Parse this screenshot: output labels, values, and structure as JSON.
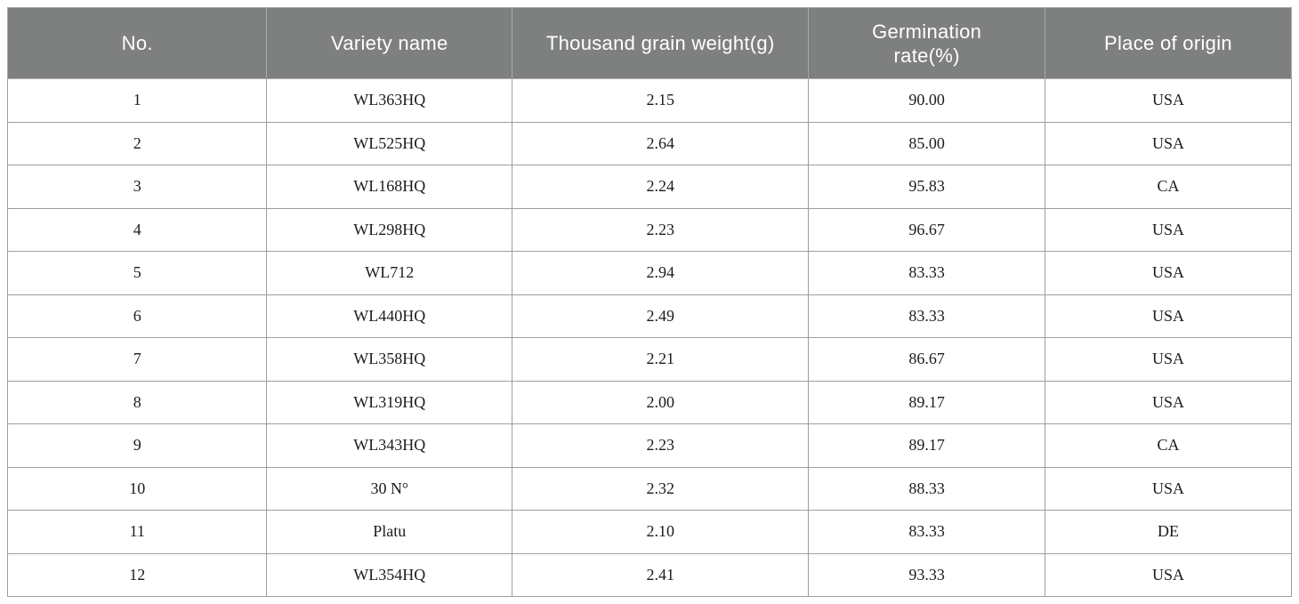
{
  "table": {
    "columns": [
      {
        "label": "No."
      },
      {
        "label": "Variety name"
      },
      {
        "label": "Thousand grain weight(g)"
      },
      {
        "label": "Germination rate(%)"
      },
      {
        "label": "Place of origin"
      }
    ],
    "rows": [
      [
        "1",
        "WL363HQ",
        "2.15",
        "90.00",
        "USA"
      ],
      [
        "2",
        "WL525HQ",
        "2.64",
        "85.00",
        "USA"
      ],
      [
        "3",
        "WL168HQ",
        "2.24",
        "95.83",
        "CA"
      ],
      [
        "4",
        "WL298HQ",
        "2.23",
        "96.67",
        "USA"
      ],
      [
        "5",
        "WL712",
        "2.94",
        "83.33",
        "USA"
      ],
      [
        "6",
        "WL440HQ",
        "2.49",
        "83.33",
        "USA"
      ],
      [
        "7",
        "WL358HQ",
        "2.21",
        "86.67",
        "USA"
      ],
      [
        "8",
        "WL319HQ",
        "2.00",
        "89.17",
        "USA"
      ],
      [
        "9",
        "WL343HQ",
        "2.23",
        "89.17",
        "CA"
      ],
      [
        "10",
        "30 N°",
        "2.32",
        "88.33",
        "USA"
      ],
      [
        "11",
        "Platu",
        "2.10",
        "83.33",
        "DE"
      ],
      [
        "12",
        "WL354HQ",
        "2.41",
        "93.33",
        "USA"
      ]
    ]
  },
  "colors": {
    "header_bg": "#7d807f",
    "header_text": "#ffffff",
    "body_text": "#1c1c1c",
    "grid_line": "#9d9f9e",
    "header_divider": "#a8aaa9",
    "page_bg": "#ffffff"
  }
}
